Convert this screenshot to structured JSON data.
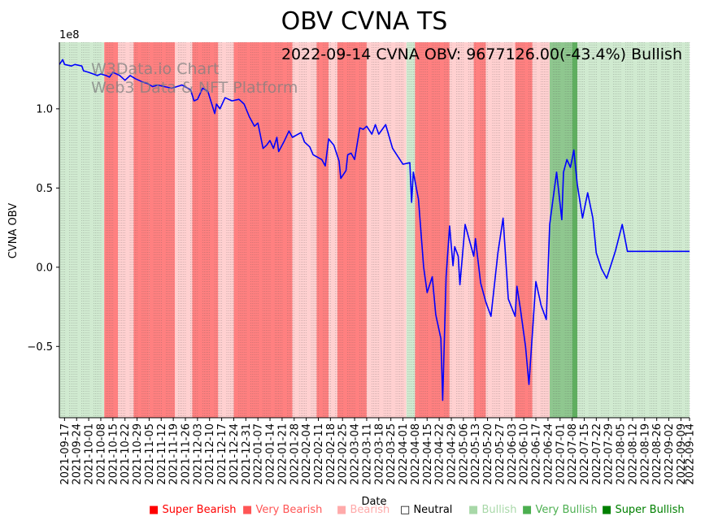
{
  "chart_data": {
    "type": "line",
    "title": "OBV CVNA TS",
    "annotation": "2022-09-14 CVNA OBV: 9677126.00(-43.4%) Bullish",
    "watermark": [
      "W3Data.io Chart",
      "Web3 Data & NFT Platform"
    ],
    "xlabel": "Date",
    "ylabel": "CVNA OBV",
    "y_offset_label": "1e8",
    "ylim": [
      -0.95,
      1.42
    ],
    "y_ticks": [
      -0.5,
      0.0,
      0.5,
      1.0
    ],
    "y_tick_labels": [
      "−0.5",
      "0.0",
      "0.5",
      "1.0"
    ],
    "x_start": "2021-09-14",
    "x_end": "2022-09-14",
    "x_tick_labels": [
      "2021-09-17",
      "2021-09-24",
      "2021-10-01",
      "2021-10-08",
      "2021-10-15",
      "2021-10-22",
      "2021-10-29",
      "2021-11-05",
      "2021-11-12",
      "2021-11-19",
      "2021-11-26",
      "2021-12-03",
      "2021-12-10",
      "2021-12-17",
      "2021-12-24",
      "2021-12-31",
      "2022-01-07",
      "2022-01-14",
      "2022-01-21",
      "2022-01-28",
      "2022-02-04",
      "2022-02-11",
      "2022-02-18",
      "2022-02-25",
      "2022-03-04",
      "2022-03-11",
      "2022-03-18",
      "2022-03-25",
      "2022-04-01",
      "2022-04-08",
      "2022-04-15",
      "2022-04-22",
      "2022-04-29",
      "2022-05-06",
      "2022-05-13",
      "2022-05-20",
      "2022-05-27",
      "2022-06-03",
      "2022-06-10",
      "2022-06-17",
      "2022-06-24",
      "2022-07-01",
      "2022-07-08",
      "2022-07-15",
      "2022-07-22",
      "2022-07-29",
      "2022-08-05",
      "2022-08-12",
      "2022-08-19",
      "2022-08-26",
      "2022-09-02",
      "2022-09-09",
      "2022-09-14"
    ],
    "series": [
      {
        "name": "CVNA OBV",
        "color": "#0000ff",
        "points": [
          [
            "2021-09-14",
            1.28
          ],
          [
            "2021-09-16",
            1.31
          ],
          [
            "2021-09-17",
            1.28
          ],
          [
            "2021-09-21",
            1.27
          ],
          [
            "2021-09-23",
            1.28
          ],
          [
            "2021-09-27",
            1.27
          ],
          [
            "2021-09-28",
            1.24
          ],
          [
            "2021-10-01",
            1.23
          ],
          [
            "2021-10-06",
            1.21
          ],
          [
            "2021-10-08",
            1.22
          ],
          [
            "2021-10-11",
            1.21
          ],
          [
            "2021-10-13",
            1.2
          ],
          [
            "2021-10-15",
            1.23
          ],
          [
            "2021-10-19",
            1.21
          ],
          [
            "2021-10-22",
            1.18
          ],
          [
            "2021-10-25",
            1.21
          ],
          [
            "2021-10-28",
            1.19
          ],
          [
            "2021-11-01",
            1.17
          ],
          [
            "2021-11-04",
            1.16
          ],
          [
            "2021-11-07",
            1.14
          ],
          [
            "2021-11-10",
            1.15
          ],
          [
            "2021-11-14",
            1.14
          ],
          [
            "2021-11-18",
            1.13
          ],
          [
            "2021-11-21",
            1.14
          ],
          [
            "2021-11-24",
            1.15
          ],
          [
            "2021-11-29",
            1.12
          ],
          [
            "2021-12-01",
            1.05
          ],
          [
            "2021-12-03",
            1.06
          ],
          [
            "2021-12-06",
            1.13
          ],
          [
            "2021-12-09",
            1.11
          ],
          [
            "2021-12-13",
            0.97
          ],
          [
            "2021-12-14",
            1.03
          ],
          [
            "2021-12-16",
            1.0
          ],
          [
            "2021-12-19",
            1.07
          ],
          [
            "2021-12-23",
            1.05
          ],
          [
            "2021-12-27",
            1.06
          ],
          [
            "2021-12-30",
            1.03
          ],
          [
            "2022-01-02",
            0.95
          ],
          [
            "2022-01-05",
            0.89
          ],
          [
            "2022-01-07",
            0.91
          ],
          [
            "2022-01-10",
            0.75
          ],
          [
            "2022-01-12",
            0.77
          ],
          [
            "2022-01-14",
            0.8
          ],
          [
            "2022-01-16",
            0.75
          ],
          [
            "2022-01-18",
            0.82
          ],
          [
            "2022-01-19",
            0.73
          ],
          [
            "2022-01-22",
            0.79
          ],
          [
            "2022-01-25",
            0.86
          ],
          [
            "2022-01-27",
            0.82
          ],
          [
            "2022-02-01",
            0.85
          ],
          [
            "2022-02-03",
            0.79
          ],
          [
            "2022-02-06",
            0.76
          ],
          [
            "2022-02-08",
            0.71
          ],
          [
            "2022-02-13",
            0.68
          ],
          [
            "2022-02-15",
            0.64
          ],
          [
            "2022-02-17",
            0.81
          ],
          [
            "2022-02-20",
            0.77
          ],
          [
            "2022-02-23",
            0.67
          ],
          [
            "2022-02-24",
            0.56
          ],
          [
            "2022-02-27",
            0.61
          ],
          [
            "2022-02-28",
            0.71
          ],
          [
            "2022-03-02",
            0.72
          ],
          [
            "2022-03-04",
            0.68
          ],
          [
            "2022-03-07",
            0.88
          ],
          [
            "2022-03-09",
            0.87
          ],
          [
            "2022-03-11",
            0.89
          ],
          [
            "2022-03-14",
            0.84
          ],
          [
            "2022-03-16",
            0.9
          ],
          [
            "2022-03-18",
            0.84
          ],
          [
            "2022-03-22",
            0.9
          ],
          [
            "2022-03-26",
            0.75
          ],
          [
            "2022-03-29",
            0.7
          ],
          [
            "2022-04-01",
            0.65
          ],
          [
            "2022-04-05",
            0.66
          ],
          [
            "2022-04-06",
            0.41
          ],
          [
            "2022-04-07",
            0.6
          ],
          [
            "2022-04-10",
            0.43
          ],
          [
            "2022-04-13",
            0.0
          ],
          [
            "2022-04-15",
            -0.16
          ],
          [
            "2022-04-18",
            -0.06
          ],
          [
            "2022-04-20",
            -0.3
          ],
          [
            "2022-04-23",
            -0.45
          ],
          [
            "2022-04-24",
            -0.84
          ],
          [
            "2022-04-26",
            -0.06
          ],
          [
            "2022-04-28",
            0.26
          ],
          [
            "2022-04-30",
            0.01
          ],
          [
            "2022-05-01",
            0.13
          ],
          [
            "2022-05-03",
            0.07
          ],
          [
            "2022-05-04",
            -0.11
          ],
          [
            "2022-05-07",
            0.27
          ],
          [
            "2022-05-12",
            0.07
          ],
          [
            "2022-05-13",
            0.18
          ],
          [
            "2022-05-16",
            -0.1
          ],
          [
            "2022-05-19",
            -0.22
          ],
          [
            "2022-05-22",
            -0.31
          ],
          [
            "2022-05-26",
            0.09
          ],
          [
            "2022-05-29",
            0.31
          ],
          [
            "2022-06-01",
            -0.2
          ],
          [
            "2022-06-05",
            -0.31
          ],
          [
            "2022-06-06",
            -0.12
          ],
          [
            "2022-06-08",
            -0.26
          ],
          [
            "2022-06-11",
            -0.5
          ],
          [
            "2022-06-13",
            -0.74
          ],
          [
            "2022-06-17",
            -0.09
          ],
          [
            "2022-06-19",
            -0.19
          ],
          [
            "2022-06-20",
            -0.24
          ],
          [
            "2022-06-23",
            -0.33
          ],
          [
            "2022-06-25",
            0.27
          ],
          [
            "2022-06-29",
            0.6
          ],
          [
            "2022-07-02",
            0.3
          ],
          [
            "2022-07-03",
            0.6
          ],
          [
            "2022-07-05",
            0.68
          ],
          [
            "2022-07-07",
            0.63
          ],
          [
            "2022-07-09",
            0.74
          ],
          [
            "2022-07-11",
            0.52
          ],
          [
            "2022-07-14",
            0.31
          ],
          [
            "2022-07-17",
            0.47
          ],
          [
            "2022-07-20",
            0.31
          ],
          [
            "2022-07-22",
            0.09
          ],
          [
            "2022-07-25",
            -0.01
          ],
          [
            "2022-07-28",
            -0.07
          ],
          [
            "2022-08-02",
            0.1
          ],
          [
            "2022-08-06",
            0.27
          ],
          [
            "2022-08-09",
            0.1
          ],
          [
            "2022-09-14",
            0.1
          ]
        ]
      }
    ],
    "regime_bands": [
      {
        "start": "2021-09-14",
        "end": "2021-10-10",
        "regime": "Bullish"
      },
      {
        "start": "2021-10-10",
        "end": "2021-10-18",
        "regime": "Very Bearish"
      },
      {
        "start": "2021-10-18",
        "end": "2021-10-27",
        "regime": "Bearish"
      },
      {
        "start": "2021-10-27",
        "end": "2021-11-05",
        "regime": "Very Bearish"
      },
      {
        "start": "2021-11-05",
        "end": "2021-11-20",
        "regime": "Very Bearish"
      },
      {
        "start": "2021-11-20",
        "end": "2021-11-30",
        "regime": "Bearish"
      },
      {
        "start": "2021-11-30",
        "end": "2021-12-15",
        "regime": "Very Bearish"
      },
      {
        "start": "2021-12-15",
        "end": "2021-12-24",
        "regime": "Bearish"
      },
      {
        "start": "2021-12-24",
        "end": "2022-01-27",
        "regime": "Very Bearish"
      },
      {
        "start": "2022-01-27",
        "end": "2022-02-10",
        "regime": "Bearish"
      },
      {
        "start": "2022-02-10",
        "end": "2022-02-17",
        "regime": "Very Bearish"
      },
      {
        "start": "2022-02-17",
        "end": "2022-02-22",
        "regime": "Bearish"
      },
      {
        "start": "2022-02-22",
        "end": "2022-03-11",
        "regime": "Very Bearish"
      },
      {
        "start": "2022-03-11",
        "end": "2022-04-03",
        "regime": "Bearish"
      },
      {
        "start": "2022-04-03",
        "end": "2022-04-08",
        "regime": "Bullish"
      },
      {
        "start": "2022-04-08",
        "end": "2022-04-28",
        "regime": "Very Bearish"
      },
      {
        "start": "2022-04-28",
        "end": "2022-05-12",
        "regime": "Bearish"
      },
      {
        "start": "2022-05-12",
        "end": "2022-05-19",
        "regime": "Very Bearish"
      },
      {
        "start": "2022-05-19",
        "end": "2022-06-05",
        "regime": "Bearish"
      },
      {
        "start": "2022-06-05",
        "end": "2022-06-15",
        "regime": "Very Bearish"
      },
      {
        "start": "2022-06-15",
        "end": "2022-06-25",
        "regime": "Bearish"
      },
      {
        "start": "2022-06-25",
        "end": "2022-07-08",
        "regime": "Very Bullish"
      },
      {
        "start": "2022-07-08",
        "end": "2022-07-11",
        "regime": "Super Bullish"
      },
      {
        "start": "2022-07-11",
        "end": "2022-09-14",
        "regime": "Bullish"
      }
    ],
    "legend": [
      {
        "label": "Super Bearish",
        "color": "#ff0000"
      },
      {
        "label": "Very Bearish",
        "color": "#ff5555"
      },
      {
        "label": "Bearish",
        "color": "#ffaaaa"
      },
      {
        "label": "Neutral",
        "color": "#000000"
      },
      {
        "label": "Bullish",
        "color": "#a8d8a8"
      },
      {
        "label": "Very Bullish",
        "color": "#4caf50"
      },
      {
        "label": "Super Bullish",
        "color": "#008000"
      }
    ],
    "legend_placement": "bottom",
    "grid": "vertical dotted",
    "colors": {
      "Super Bearish": "#ff6060",
      "Very Bearish": "#ff8080",
      "Bearish": "#ffd0d0",
      "Bullish": "#d0ead0",
      "Very Bullish": "#8fc78f",
      "Super Bullish": "#5fae5f"
    }
  }
}
